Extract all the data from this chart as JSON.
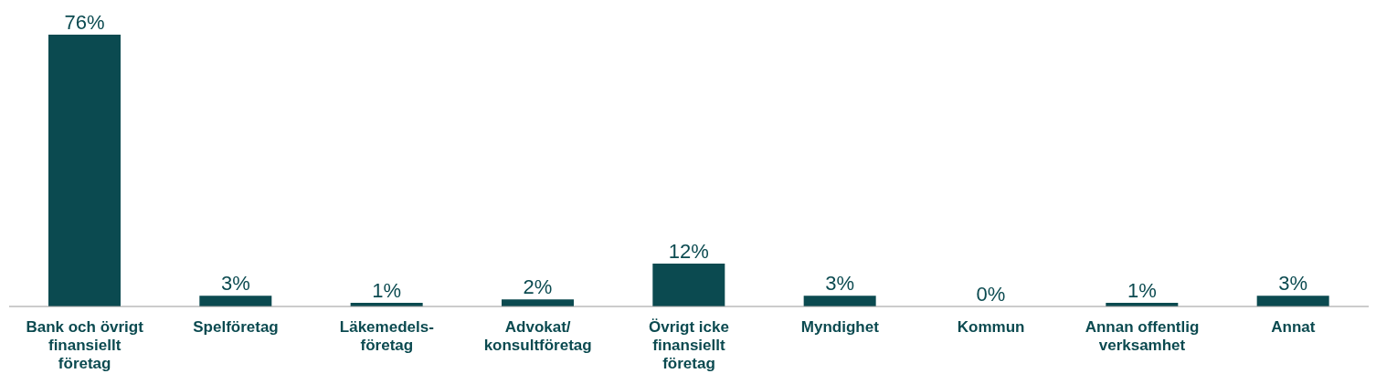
{
  "chart_data": {
    "type": "bar",
    "categories": [
      "Bank och övrigt finansiellt företag",
      "Spelföretag",
      "Läkemedels-företag",
      "Advokat/konsultföretag",
      "Övrigt icke finansiellt företag",
      "Myndighet",
      "Kommun",
      "Annan offentlig verksamhet",
      "Annat"
    ],
    "values": [
      76,
      3,
      1,
      2,
      12,
      3,
      0,
      1,
      3
    ],
    "value_labels": [
      "76%",
      "3%",
      "1%",
      "2%",
      "12%",
      "3%",
      "0%",
      "1%",
      "3%"
    ],
    "color": "#0b4a50"
  }
}
